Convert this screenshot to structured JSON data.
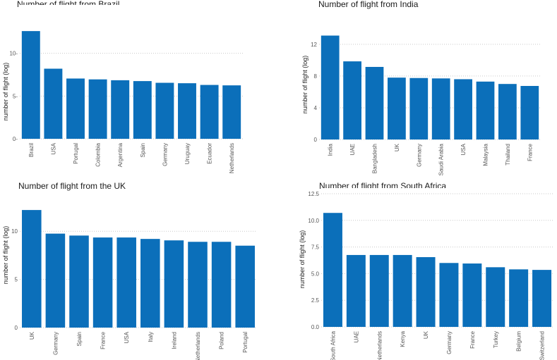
{
  "chart_data": [
    {
      "type": "bar",
      "title": "Number of flight from Brazil",
      "xlabel": "",
      "ylabel": "number of flight (log)",
      "categories": [
        "Brazil",
        "USA",
        "Portugal",
        "Colombia",
        "Argentina",
        "Spain",
        "Germany",
        "Uruguay",
        "Ecuador",
        "Netherlands"
      ],
      "values": [
        12.6,
        8.2,
        7.05,
        6.95,
        6.85,
        6.75,
        6.55,
        6.5,
        6.3,
        6.25
      ],
      "ylim": [
        0,
        15
      ],
      "yticks": [
        0,
        5,
        10
      ],
      "ytick_labels": [
        "0-",
        "5-",
        "10-"
      ]
    },
    {
      "type": "bar",
      "title": "Number of flight from India",
      "xlabel": "",
      "ylabel": "number of flight (log)",
      "categories": [
        "India",
        "UAE",
        "Bangladesh",
        "UK",
        "Germany",
        "Saudi Arabia",
        "USA",
        "Malaysia",
        "Thailand",
        "France"
      ],
      "values": [
        13.1,
        9.85,
        9.15,
        7.8,
        7.75,
        7.7,
        7.6,
        7.3,
        7.0,
        6.75
      ],
      "ylim": [
        0,
        13.5
      ],
      "yticks": [
        0,
        4,
        8,
        12
      ],
      "ytick_labels": [
        "0",
        "4",
        "8",
        "12"
      ]
    },
    {
      "type": "bar",
      "title": "Number of flight from the UK",
      "xlabel": "",
      "ylabel": "number of flight (log)",
      "categories": [
        "UK",
        "Germany",
        "Spain",
        "France",
        "USA",
        "Italy",
        "Ireland",
        "Netherlands",
        "Poland",
        "Portugal"
      ],
      "values": [
        12.2,
        9.75,
        9.55,
        9.35,
        9.35,
        9.2,
        9.05,
        8.9,
        8.9,
        8.5
      ],
      "ylim": [
        0,
        12.5
      ],
      "yticks": [
        0,
        5,
        10
      ],
      "ytick_labels": [
        "0",
        "5",
        "10"
      ]
    },
    {
      "type": "bar",
      "title": "Number of flight from South Africa",
      "xlabel": "",
      "ylabel": "number of flight (log)",
      "categories": [
        "South Africa",
        "UAE",
        "Netherlands",
        "Kenya",
        "UK",
        "Germany",
        "France",
        "Turkey",
        "Belgium",
        "Switzerland"
      ],
      "values": [
        10.7,
        6.75,
        6.75,
        6.75,
        6.55,
        6.0,
        5.95,
        5.6,
        5.4,
        5.35
      ],
      "ylim": [
        0,
        12.5
      ],
      "yticks": [
        0,
        2.5,
        5,
        7.5,
        10,
        12.5
      ],
      "ytick_labels": [
        "0.0",
        "2.5",
        "5.0",
        "7.5",
        "10.0",
        "12.5"
      ]
    }
  ]
}
